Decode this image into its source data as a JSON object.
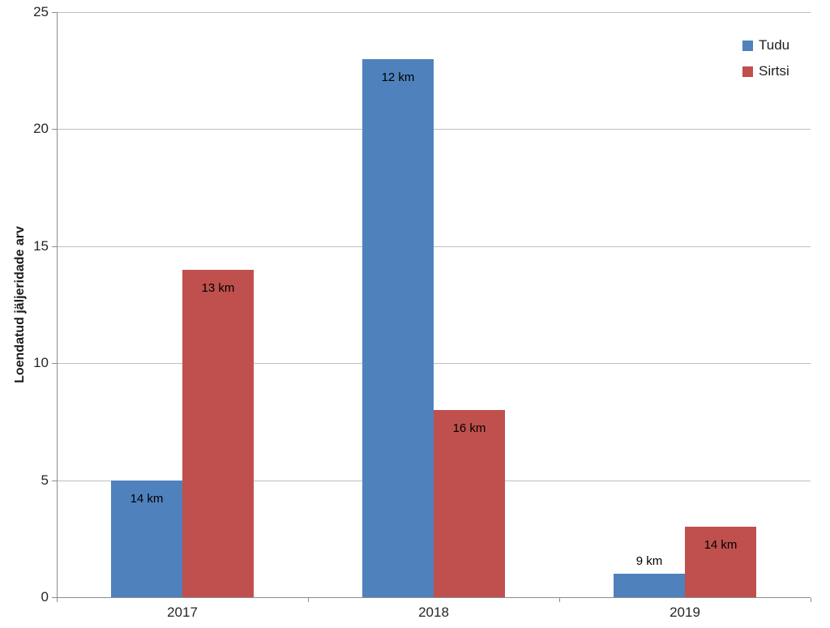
{
  "chart_data": {
    "type": "bar",
    "title": "",
    "xlabel": "",
    "ylabel": "Loendatud jäljeridade arv",
    "categories": [
      "2017",
      "2018",
      "2019"
    ],
    "series": [
      {
        "name": "Tudu",
        "color": "#4F81BD",
        "values": [
          5,
          23,
          1
        ],
        "point_labels": [
          "14 km",
          "12 km",
          "9 km"
        ]
      },
      {
        "name": "Sirtsi",
        "color": "#C0504D",
        "values": [
          14,
          8,
          3
        ],
        "point_labels": [
          "13 km",
          "16 km",
          "14 km"
        ]
      }
    ],
    "ylim": [
      0,
      25
    ],
    "yticks": [
      0,
      5,
      10,
      15,
      20,
      25
    ],
    "grid": true,
    "legend_position": "top-right"
  },
  "styles": {
    "background": "#FFFFFF",
    "gridline_color": "#BFBFBF",
    "axis_color": "#8C8C8C",
    "tick_color": "#8C8C8C",
    "tick_label_color": "#262626",
    "data_label_color": "#000000",
    "legend_text_color": "#1F1F1F",
    "y_title_color": "#1A1A1A"
  }
}
